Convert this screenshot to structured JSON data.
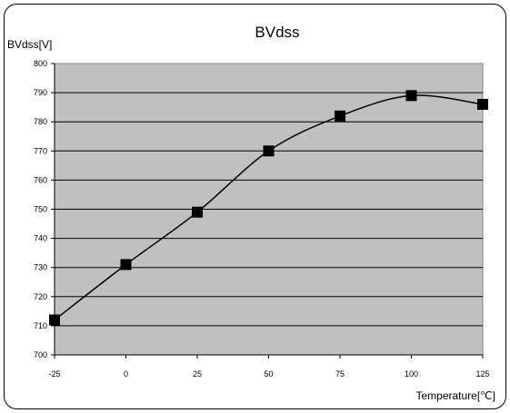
{
  "chart_data": {
    "type": "line",
    "title": "BVdss",
    "ylabel": "BVdss[V]",
    "xlabel": "Temperature[℃]",
    "xlim": [
      -25,
      125
    ],
    "ylim": [
      700,
      800
    ],
    "x_ticks": [
      "-25",
      "0",
      "25",
      "50",
      "75",
      "100",
      "125"
    ],
    "y_ticks": [
      "800",
      "790",
      "780",
      "770",
      "760",
      "750",
      "740",
      "730",
      "720",
      "710",
      "700"
    ],
    "grid": true,
    "legend": "none",
    "series": [
      {
        "x": [
          -25,
          0,
          25,
          50,
          75,
          100,
          125
        ],
        "y": [
          712,
          731,
          749,
          770,
          782,
          789,
          786
        ],
        "color": "#000000"
      }
    ],
    "plot_background": "#c0c0c0"
  }
}
